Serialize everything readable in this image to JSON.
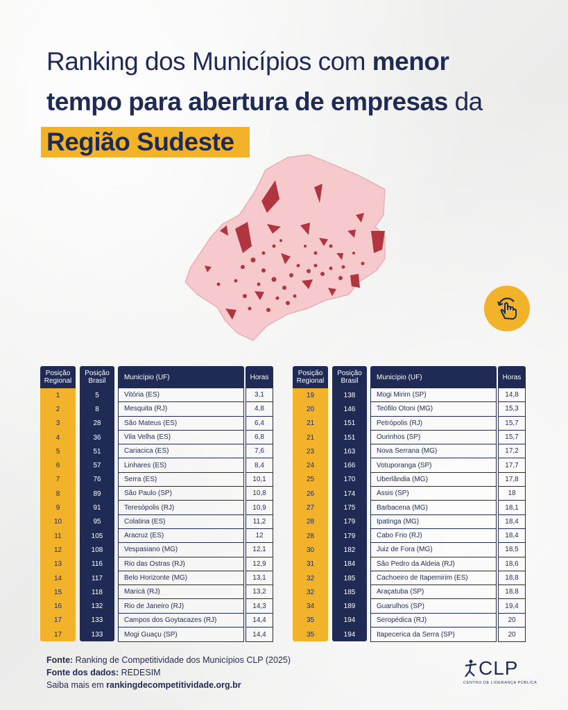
{
  "title": {
    "part1": "Ranking dos Municípios com ",
    "part1_bold": "menor",
    "part2_bold": "tempo para abertura de empresas",
    "part2": " da",
    "highlight": "Região Sudeste"
  },
  "colors": {
    "navy": "#1f2b55",
    "yellow": "#f2b32a",
    "map_fill": "#f6c9cc",
    "map_mark": "#b1353f"
  },
  "icons": {
    "swipe": "swipe-hand-icon"
  },
  "table": {
    "headers": {
      "pos_regional": "Posição Regional",
      "pos_brasil": "Posição Brasil",
      "municipio": "Município (UF)",
      "horas": "Horas"
    },
    "left": [
      {
        "reg": "1",
        "br": "5",
        "mun": "Vitória (ES)",
        "h": "3,1"
      },
      {
        "reg": "2",
        "br": "8",
        "mun": "Mesquita (RJ)",
        "h": "4,8"
      },
      {
        "reg": "3",
        "br": "28",
        "mun": "São Mateus (ES)",
        "h": "6,4"
      },
      {
        "reg": "4",
        "br": "36",
        "mun": "Vila Velha (ES)",
        "h": "6,8"
      },
      {
        "reg": "5",
        "br": "51",
        "mun": "Cariacica (ES)",
        "h": "7,6"
      },
      {
        "reg": "6",
        "br": "57",
        "mun": "Linhares (ES)",
        "h": "8,4"
      },
      {
        "reg": "7",
        "br": "76",
        "mun": "Serra (ES)",
        "h": "10,1"
      },
      {
        "reg": "8",
        "br": "89",
        "mun": "São Paulo (SP)",
        "h": "10,8"
      },
      {
        "reg": "9",
        "br": "91",
        "mun": "Teresópolis (RJ)",
        "h": "10,9"
      },
      {
        "reg": "10",
        "br": "95",
        "mun": "Colatina (ES)",
        "h": "11,2"
      },
      {
        "reg": "11",
        "br": "105",
        "mun": "Aracruz (ES)",
        "h": "12"
      },
      {
        "reg": "12",
        "br": "108",
        "mun": "Vespasiano (MG)",
        "h": "12,1"
      },
      {
        "reg": "13",
        "br": "116",
        "mun": "Rio das Ostras (RJ)",
        "h": "12,9"
      },
      {
        "reg": "14",
        "br": "117",
        "mun": "Belo Horizonte (MG)",
        "h": "13,1"
      },
      {
        "reg": "15",
        "br": "118",
        "mun": "Maricá (RJ)",
        "h": "13,2"
      },
      {
        "reg": "16",
        "br": "132",
        "mun": "Rio de Janeiro (RJ)",
        "h": "14,3"
      },
      {
        "reg": "17",
        "br": "133",
        "mun": "Campos dos Goytacazes (RJ)",
        "h": "14,4"
      },
      {
        "reg": "17",
        "br": "133",
        "mun": "Mogi Guaçu (SP)",
        "h": "14,4"
      }
    ],
    "right": [
      {
        "reg": "19",
        "br": "138",
        "mun": "Mogi Mirim (SP)",
        "h": "14,8"
      },
      {
        "reg": "20",
        "br": "146",
        "mun": "Teófilo Otoni (MG)",
        "h": "15,3"
      },
      {
        "reg": "21",
        "br": "151",
        "mun": "Petrópolis (RJ)",
        "h": "15,7"
      },
      {
        "reg": "21",
        "br": "151",
        "mun": "Ourinhos (SP)",
        "h": "15,7"
      },
      {
        "reg": "23",
        "br": "163",
        "mun": "Nova Serrana (MG)",
        "h": "17,2"
      },
      {
        "reg": "24",
        "br": "166",
        "mun": "Votuporanga (SP)",
        "h": "17,7"
      },
      {
        "reg": "25",
        "br": "170",
        "mun": "Uberlândia (MG)",
        "h": "17,8"
      },
      {
        "reg": "26",
        "br": "174",
        "mun": "Assis (SP)",
        "h": "18"
      },
      {
        "reg": "27",
        "br": "175",
        "mun": "Barbacena (MG)",
        "h": "18,1"
      },
      {
        "reg": "28",
        "br": "179",
        "mun": "Ipatinga (MG)",
        "h": "18,4"
      },
      {
        "reg": "28",
        "br": "179",
        "mun": "Cabo Frio (RJ)",
        "h": "18,4"
      },
      {
        "reg": "30",
        "br": "182",
        "mun": "Juiz de Fora (MG)",
        "h": "18,5"
      },
      {
        "reg": "31",
        "br": "184",
        "mun": "São Pedro da Aldeia (RJ)",
        "h": "18,6"
      },
      {
        "reg": "32",
        "br": "185",
        "mun": "Cachoeiro de Itapemirim (ES)",
        "h": "18,8"
      },
      {
        "reg": "32",
        "br": "185",
        "mun": "Araçatuba (SP)",
        "h": "18,8"
      },
      {
        "reg": "34",
        "br": "189",
        "mun": "Guarulhos (SP)",
        "h": "19,4"
      },
      {
        "reg": "35",
        "br": "194",
        "mun": "Seropédica (RJ)",
        "h": "20"
      },
      {
        "reg": "35",
        "br": "194",
        "mun": "Itapecerica da Serra (SP)",
        "h": "20"
      }
    ]
  },
  "footer": {
    "fonte_label": "Fonte:",
    "fonte": " Ranking de Competitividade dos  Municípios CLP (2025)",
    "dados_label": "Fonte dos dados:",
    "dados": "  REDESIM",
    "saiba": "Saiba mais em ",
    "url": "rankingdecompetitividade.org.br"
  },
  "logo": {
    "brand": "CLP",
    "tagline": "CENTRO DE LIDERANÇA PÚBLICA"
  }
}
